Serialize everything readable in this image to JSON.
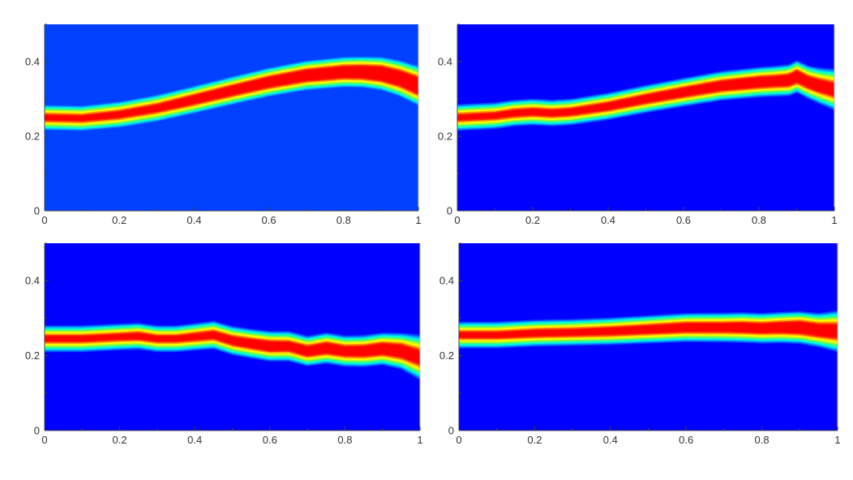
{
  "colormap": [
    "#0000ff",
    "#0050ff",
    "#00b0ff",
    "#00ffd8",
    "#40ff80",
    "#b0ff20",
    "#ffff00",
    "#ffa000",
    "#ff3000",
    "#ff0000"
  ],
  "chart_data": [
    {
      "type": "heatmap",
      "background": "#0040ff",
      "xlim": [
        0,
        1
      ],
      "ylim": [
        0,
        0.5
      ],
      "xticks": [
        "0",
        "0.2",
        "0.4",
        "0.6",
        "0.8",
        "1"
      ],
      "yticks": [
        "0",
        "0.2",
        "0.4"
      ],
      "band": {
        "x": [
          0,
          0.1,
          0.2,
          0.3,
          0.4,
          0.5,
          0.6,
          0.7,
          0.8,
          0.85,
          0.9,
          0.95,
          1
        ],
        "center": [
          0.25,
          0.248,
          0.258,
          0.275,
          0.298,
          0.322,
          0.345,
          0.363,
          0.372,
          0.372,
          0.368,
          0.355,
          0.335
        ],
        "core_halfwidth": [
          0.006,
          0.006,
          0.007,
          0.008,
          0.01,
          0.011,
          0.012,
          0.013,
          0.014,
          0.015,
          0.017,
          0.018,
          0.02
        ],
        "halo_halfwidth": [
          0.035,
          0.035,
          0.036,
          0.037,
          0.038,
          0.039,
          0.04,
          0.041,
          0.042,
          0.043,
          0.046,
          0.05,
          0.055
        ]
      }
    },
    {
      "type": "heatmap",
      "background": "#0000ff",
      "xlim": [
        0,
        1
      ],
      "ylim": [
        0,
        0.5
      ],
      "xticks": [
        "0",
        "0.2",
        "0.4",
        "0.6",
        "0.8",
        "1"
      ],
      "yticks": [
        "0",
        "0.2",
        "0.4"
      ],
      "band": {
        "x": [
          0,
          0.1,
          0.15,
          0.2,
          0.25,
          0.3,
          0.4,
          0.5,
          0.6,
          0.7,
          0.8,
          0.85,
          0.88,
          0.9,
          0.93,
          0.96,
          1
        ],
        "center": [
          0.25,
          0.255,
          0.262,
          0.265,
          0.262,
          0.265,
          0.28,
          0.3,
          0.318,
          0.335,
          0.345,
          0.348,
          0.35,
          0.36,
          0.345,
          0.335,
          0.325
        ],
        "core_halfwidth": [
          0.006,
          0.006,
          0.007,
          0.007,
          0.007,
          0.007,
          0.008,
          0.009,
          0.01,
          0.011,
          0.012,
          0.012,
          0.013,
          0.014,
          0.013,
          0.014,
          0.015
        ],
        "halo_halfwidth": [
          0.035,
          0.035,
          0.035,
          0.035,
          0.035,
          0.035,
          0.036,
          0.037,
          0.038,
          0.039,
          0.04,
          0.041,
          0.042,
          0.043,
          0.044,
          0.048,
          0.055
        ]
      }
    },
    {
      "type": "heatmap",
      "background": "#0000ff",
      "xlim": [
        0,
        1
      ],
      "ylim": [
        0,
        0.5
      ],
      "xticks": [
        "0",
        "0.2",
        "0.4",
        "0.6",
        "0.8",
        "1"
      ],
      "yticks": [
        "0",
        "0.2",
        "0.4"
      ],
      "band": {
        "x": [
          0,
          0.1,
          0.2,
          0.25,
          0.3,
          0.35,
          0.4,
          0.45,
          0.5,
          0.55,
          0.6,
          0.65,
          0.7,
          0.75,
          0.8,
          0.85,
          0.9,
          0.95,
          1
        ],
        "center": [
          0.245,
          0.245,
          0.25,
          0.252,
          0.245,
          0.245,
          0.25,
          0.255,
          0.24,
          0.232,
          0.225,
          0.225,
          0.212,
          0.22,
          0.212,
          0.212,
          0.218,
          0.212,
          0.195
        ],
        "core_halfwidth": [
          0.006,
          0.006,
          0.006,
          0.007,
          0.006,
          0.006,
          0.007,
          0.008,
          0.009,
          0.01,
          0.011,
          0.01,
          0.011,
          0.012,
          0.011,
          0.012,
          0.013,
          0.015,
          0.016
        ],
        "halo_halfwidth": [
          0.035,
          0.035,
          0.035,
          0.035,
          0.035,
          0.035,
          0.036,
          0.037,
          0.038,
          0.039,
          0.04,
          0.04,
          0.04,
          0.041,
          0.041,
          0.042,
          0.043,
          0.048,
          0.06
        ]
      }
    },
    {
      "type": "heatmap",
      "background": "#0000ff",
      "xlim": [
        0,
        1
      ],
      "ylim": [
        0,
        0.5
      ],
      "xticks": [
        "0",
        "0.2",
        "0.4",
        "0.6",
        "0.8",
        "1"
      ],
      "yticks": [
        "0",
        "0.2",
        "0.4"
      ],
      "band": {
        "x": [
          0,
          0.1,
          0.2,
          0.3,
          0.4,
          0.5,
          0.6,
          0.7,
          0.75,
          0.8,
          0.85,
          0.9,
          0.95,
          1
        ],
        "center": [
          0.255,
          0.255,
          0.26,
          0.262,
          0.265,
          0.27,
          0.275,
          0.275,
          0.275,
          0.273,
          0.275,
          0.275,
          0.268,
          0.265
        ],
        "core_halfwidth": [
          0.006,
          0.006,
          0.007,
          0.007,
          0.008,
          0.009,
          0.01,
          0.01,
          0.011,
          0.011,
          0.012,
          0.014,
          0.014,
          0.016
        ],
        "halo_halfwidth": [
          0.035,
          0.035,
          0.035,
          0.035,
          0.036,
          0.037,
          0.038,
          0.039,
          0.04,
          0.04,
          0.041,
          0.043,
          0.045,
          0.055
        ]
      }
    }
  ]
}
